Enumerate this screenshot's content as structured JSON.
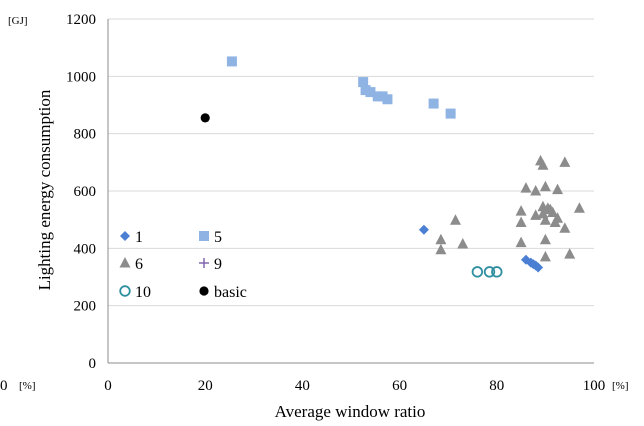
{
  "chart_data": {
    "type": "scatter",
    "title": "",
    "xlabel": "Average window ratio",
    "ylabel": "Lighting energy consumption",
    "y_unit": "[GJ]",
    "x_unit_left": "[%]",
    "x_unit_right": "[%]",
    "xlim": [
      0,
      100
    ],
    "ylim": [
      0,
      1200
    ],
    "x_ticks": [
      "0",
      "20",
      "40",
      "60",
      "80",
      "100"
    ],
    "x_left_label": "0",
    "y_ticks": [
      "0",
      "200",
      "400",
      "600",
      "800",
      "1000",
      "1200"
    ],
    "grid": "horizontal",
    "legend_position": "left, inside plot",
    "series": [
      {
        "name": "1",
        "marker": "diamond",
        "color": "#4a7fd4",
        "points": [
          [
            65,
            465
          ],
          [
            86,
            360
          ],
          [
            87,
            350
          ],
          [
            87.5,
            345
          ],
          [
            88,
            340
          ],
          [
            88.5,
            333
          ]
        ]
      },
      {
        "name": "5",
        "marker": "square",
        "color": "#8fb4e3",
        "points": [
          [
            25.5,
            1052
          ],
          [
            52.5,
            980
          ],
          [
            53,
            952
          ],
          [
            54,
            945
          ],
          [
            55.5,
            930
          ],
          [
            56.5,
            930
          ],
          [
            57.5,
            920
          ],
          [
            67,
            905
          ],
          [
            70.5,
            870
          ]
        ]
      },
      {
        "name": "6",
        "marker": "triangle",
        "color": "#8c8c8c",
        "points": [
          [
            68.5,
            430
          ],
          [
            68.5,
            395
          ],
          [
            71.5,
            498
          ],
          [
            73,
            415
          ],
          [
            85,
            530
          ],
          [
            85,
            490
          ],
          [
            85,
            420
          ],
          [
            86,
            610
          ],
          [
            88,
            600
          ],
          [
            88,
            515
          ],
          [
            89,
            705
          ],
          [
            89.5,
            690
          ],
          [
            89.5,
            545
          ],
          [
            89.5,
            520
          ],
          [
            90,
            615
          ],
          [
            90,
            498
          ],
          [
            90,
            430
          ],
          [
            90.5,
            540
          ],
          [
            91,
            535
          ],
          [
            91.5,
            525
          ],
          [
            92,
            490
          ],
          [
            92.5,
            605
          ],
          [
            92.5,
            505
          ],
          [
            94,
            700
          ],
          [
            94,
            470
          ],
          [
            95,
            380
          ],
          [
            90,
            370
          ],
          [
            97,
            540
          ]
        ]
      },
      {
        "name": "9",
        "marker": "plus",
        "color": "#7a5ea8",
        "points": []
      },
      {
        "name": "10",
        "marker": "open-circle",
        "color": "#2f8fa0",
        "points": [
          [
            76,
            318
          ],
          [
            78.5,
            318
          ],
          [
            80,
            318
          ]
        ]
      },
      {
        "name": "basic",
        "marker": "filled-circle",
        "color": "#000000",
        "points": [
          [
            20,
            855
          ]
        ]
      }
    ]
  }
}
